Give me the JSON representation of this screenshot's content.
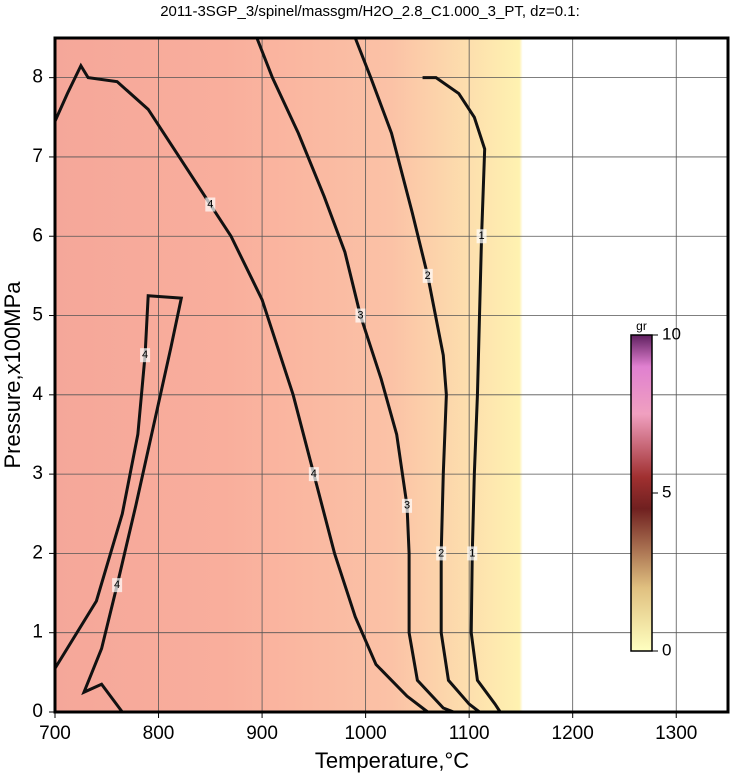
{
  "chart_data": {
    "type": "contour",
    "title": "2011-3SGP_3/spinel/massgm/H2O_2.8_C1.000_3_PT, dz=0.1:",
    "xlabel": "Temperature,°C",
    "ylabel": "Pressure,x100MPa",
    "xlim": [
      700,
      1350
    ],
    "ylim": [
      0,
      8.5
    ],
    "xticks": [
      700,
      800,
      900,
      1000,
      1100,
      1200,
      1300
    ],
    "yticks": [
      0,
      1,
      2,
      3,
      4,
      5,
      6,
      7,
      8
    ],
    "grid": true,
    "contours": [
      {
        "level": 4,
        "x": [
          700,
          712,
          725,
          732,
          760,
          790,
          820,
          850,
          870,
          900,
          930,
          950,
          970,
          990,
          1010,
          1040,
          1060
        ],
        "y": [
          7.45,
          7.8,
          8.15,
          8.0,
          7.95,
          7.6,
          7.0,
          6.4,
          6.0,
          5.2,
          4.0,
          3.0,
          2.0,
          1.2,
          0.6,
          0.2,
          0
        ]
      },
      {
        "level": 4,
        "x": [
          700,
          740,
          765,
          780,
          787,
          790,
          822,
          812,
          795,
          778,
          760,
          745,
          728,
          745,
          765
        ],
        "y": [
          0.55,
          1.4,
          2.5,
          3.5,
          4.5,
          5.25,
          5.22,
          4.6,
          3.6,
          2.6,
          1.6,
          0.8,
          0.25,
          0.35,
          0
        ]
      },
      {
        "level": 3,
        "x": [
          895,
          910,
          935,
          960,
          980,
          995,
          1015,
          1030,
          1040,
          1042,
          1042,
          1050,
          1075,
          1085
        ],
        "y": [
          8.5,
          8.0,
          7.3,
          6.5,
          5.8,
          5.0,
          4.2,
          3.5,
          2.6,
          2.0,
          1.0,
          0.4,
          0.05,
          0
        ]
      },
      {
        "level": 2,
        "x": [
          990,
          1005,
          1025,
          1045,
          1060,
          1075,
          1078,
          1075,
          1073,
          1073,
          1080,
          1100,
          1110
        ],
        "y": [
          8.5,
          8.0,
          7.3,
          6.3,
          5.5,
          4.5,
          4.0,
          3.0,
          2.0,
          1.0,
          0.4,
          0.1,
          0
        ]
      },
      {
        "level": 1,
        "x": [
          1055,
          1068,
          1090,
          1105,
          1115,
          1112,
          1110,
          1108,
          1105,
          1103,
          1102,
          1108,
          1125,
          1130
        ],
        "y": [
          8.0,
          8.0,
          7.8,
          7.5,
          7.1,
          6.0,
          5.0,
          4.0,
          3.0,
          2.0,
          1.0,
          0.4,
          0.1,
          0
        ]
      }
    ],
    "colorbar": {
      "label": "gr",
      "lim": [
        0,
        10
      ],
      "ticks": [
        0,
        5,
        10
      ]
    }
  }
}
